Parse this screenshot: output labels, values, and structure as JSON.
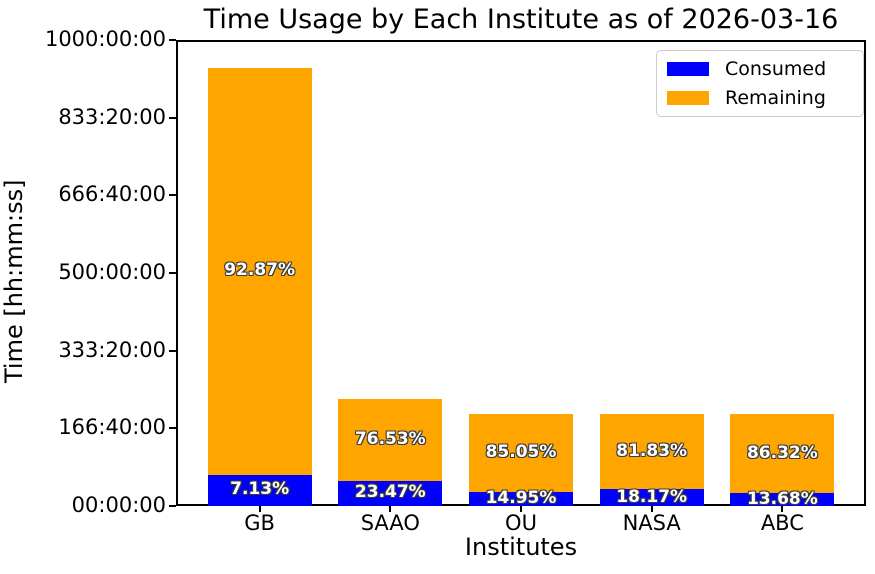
{
  "figure": {
    "title": "Time Usage by Each Institute as of 2026-03-16",
    "xlabel": "Institutes",
    "ylabel": "Time [hh:mm:ss]"
  },
  "legend": {
    "items": [
      {
        "label": "Consumed",
        "color": "#0000ff"
      },
      {
        "label": "Remaining",
        "color": "#ffa500"
      }
    ]
  },
  "chart_data": {
    "type": "bar",
    "stacked": true,
    "title": "Time Usage by Each Institute as of 2026-03-16",
    "xlabel": "Institutes",
    "ylabel": "Time [hh:mm:ss]",
    "categories": [
      "GB",
      "SAAO",
      "OU",
      "NASA",
      "ABC"
    ],
    "series": [
      {
        "name": "Consumed",
        "color": "#0000ff",
        "values_hours": [
          67,
          54,
          29.5,
          35.8,
          27
        ],
        "percent_labels": [
          "7.13%",
          "23.47%",
          "14.95%",
          "18.17%",
          "13.68%"
        ]
      },
      {
        "name": "Remaining",
        "color": "#ffa500",
        "values_hours": [
          873,
          176,
          167.5,
          161.2,
          170
        ],
        "percent_labels": [
          "92.87%",
          "76.53%",
          "85.05%",
          "81.83%",
          "86.32%"
        ]
      }
    ],
    "totals_hours": [
      940,
      230,
      197,
      197,
      197
    ],
    "ylim_hours": [
      0,
      1000
    ],
    "yticks": [
      {
        "label": "00:00:00",
        "hours": 0
      },
      {
        "label": "166:40:00",
        "hours": 166.6667
      },
      {
        "label": "333:20:00",
        "hours": 333.3333
      },
      {
        "label": "500:00:00",
        "hours": 500
      },
      {
        "label": "666:40:00",
        "hours": 666.6667
      },
      {
        "label": "833:20:00",
        "hours": 833.3333
      },
      {
        "label": "1000:00:00",
        "hours": 1000
      }
    ],
    "legend_position": "upper right",
    "grid": false,
    "bar_label_text_color": "#ffffff"
  }
}
